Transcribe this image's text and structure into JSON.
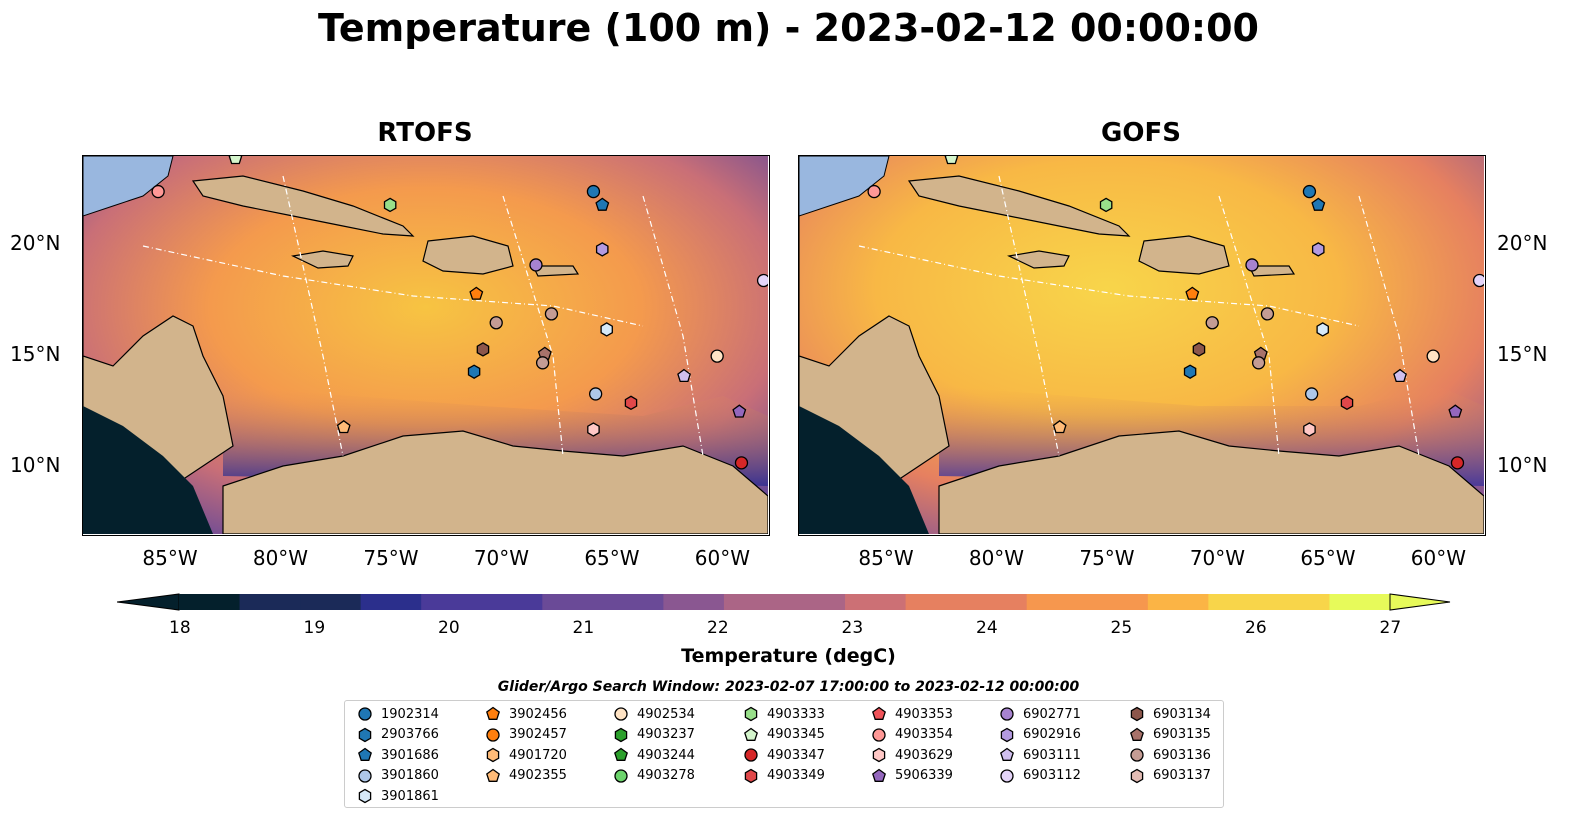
{
  "title": "Temperature (100 m) - 2023-02-12 00:00:00",
  "panels": [
    {
      "name": "RTOFS"
    },
    {
      "name": "GOFS"
    }
  ],
  "map_extent": {
    "lon_min": -89,
    "lon_max": -58,
    "lat_min": 7,
    "lat_max": 24
  },
  "lon_ticks": [
    "85°W",
    "80°W",
    "75°W",
    "70°W",
    "65°W",
    "60°W"
  ],
  "lat_ticks": [
    "20°N",
    "15°N",
    "10°N"
  ],
  "colorbar": {
    "label": "Temperature (degC)",
    "ticks": [
      "18",
      "19",
      "20",
      "21",
      "22",
      "23",
      "24",
      "25",
      "26",
      "27"
    ],
    "min": 18,
    "max": 27,
    "extend": "both",
    "colormap": "thermal",
    "stops": [
      "#04202c",
      "#1b2a58",
      "#2b2f8c",
      "#4a3a99",
      "#6a4a97",
      "#8a5791",
      "#ab6586",
      "#cc7075",
      "#e68060",
      "#f6974e",
      "#fbb445",
      "#f8d54a",
      "#e7fa5a"
    ]
  },
  "legend": {
    "title": "Glider/Argo Search Window: 2023-02-07 17:00:00 to 2023-02-12 00:00:00",
    "items": [
      {
        "label": "1902314",
        "marker": "circle",
        "color": "#1f77b4"
      },
      {
        "label": "2903766",
        "marker": "hexagon",
        "color": "#1f77b4"
      },
      {
        "label": "3901686",
        "marker": "pentagon",
        "color": "#1f77b4"
      },
      {
        "label": "3901860",
        "marker": "circle",
        "color": "#aec7e8"
      },
      {
        "label": "3901861",
        "marker": "hexagon",
        "color": "#d6e9f8"
      },
      {
        "label": "3902456",
        "marker": "pentagon",
        "color": "#ff7f0e"
      },
      {
        "label": "3902457",
        "marker": "circle",
        "color": "#ff7f0e"
      },
      {
        "label": "4901720",
        "marker": "hexagon",
        "color": "#ffbb78"
      },
      {
        "label": "4902355",
        "marker": "pentagon",
        "color": "#ffbb78"
      },
      {
        "label": "4902534",
        "marker": "circle",
        "color": "#ffe3c4"
      },
      {
        "label": "4903237",
        "marker": "hexagon",
        "color": "#2ca02c"
      },
      {
        "label": "4903244",
        "marker": "pentagon",
        "color": "#2ca02c"
      },
      {
        "label": "4903278",
        "marker": "circle",
        "color": "#6cd46c"
      },
      {
        "label": "4903333",
        "marker": "hexagon",
        "color": "#98df8a"
      },
      {
        "label": "4903345",
        "marker": "pentagon",
        "color": "#d4f5cc"
      },
      {
        "label": "4903347",
        "marker": "circle",
        "color": "#d62728"
      },
      {
        "label": "4903349",
        "marker": "hexagon",
        "color": "#e0484a"
      },
      {
        "label": "4903353",
        "marker": "pentagon",
        "color": "#f0535a"
      },
      {
        "label": "4903354",
        "marker": "circle",
        "color": "#ff9896"
      },
      {
        "label": "4903629",
        "marker": "hexagon",
        "color": "#ffc8c6"
      },
      {
        "label": "5906339",
        "marker": "pentagon",
        "color": "#9467bd"
      },
      {
        "label": "6902771",
        "marker": "circle",
        "color": "#a783cf"
      },
      {
        "label": "6902916",
        "marker": "hexagon",
        "color": "#b39ae0"
      },
      {
        "label": "6903111",
        "marker": "pentagon",
        "color": "#d0bfee"
      },
      {
        "label": "6903112",
        "marker": "circle",
        "color": "#e4d4f8"
      },
      {
        "label": "6903134",
        "marker": "hexagon",
        "color": "#8c564b"
      },
      {
        "label": "6903135",
        "marker": "pentagon",
        "color": "#a8726a"
      },
      {
        "label": "6903136",
        "marker": "circle",
        "color": "#c49c94"
      },
      {
        "label": "6903137",
        "marker": "hexagon",
        "color": "#e3bcb4"
      }
    ]
  },
  "markers": [
    {
      "id": "1902314",
      "lon": -65.9,
      "lat": 22.4
    },
    {
      "id": "3901686",
      "lon": -65.5,
      "lat": 21.8
    },
    {
      "id": "6902916",
      "lon": -65.5,
      "lat": 19.8
    },
    {
      "id": "6902771",
      "lon": -68.5,
      "lat": 19.1
    },
    {
      "id": "4903333",
      "lon": -75.1,
      "lat": 21.8
    },
    {
      "id": "4903345",
      "lon": -82.1,
      "lat": 23.9
    },
    {
      "id": "4903354",
      "lon": -85.6,
      "lat": 22.4
    },
    {
      "id": "3902456",
      "lon": -71.2,
      "lat": 17.8
    },
    {
      "id": "6903136",
      "lon": -67.8,
      "lat": 16.9
    },
    {
      "id": "6903136",
      "lon": -70.3,
      "lat": 16.5
    },
    {
      "id": "3901861",
      "lon": -65.3,
      "lat": 16.2
    },
    {
      "id": "6903134",
      "lon": -70.9,
      "lat": 15.3
    },
    {
      "id": "6903135",
      "lon": -68.1,
      "lat": 15.1
    },
    {
      "id": "6903136",
      "lon": -68.2,
      "lat": 14.7
    },
    {
      "id": "2903766",
      "lon": -71.3,
      "lat": 14.3
    },
    {
      "id": "4902534",
      "lon": -60.3,
      "lat": 15.0
    },
    {
      "id": "6903111",
      "lon": -61.8,
      "lat": 14.1
    },
    {
      "id": "3901860",
      "lon": -65.8,
      "lat": 13.3
    },
    {
      "id": "4903349",
      "lon": -64.2,
      "lat": 12.9
    },
    {
      "id": "5906339",
      "lon": -59.3,
      "lat": 12.5
    },
    {
      "id": "4902355",
      "lon": -77.2,
      "lat": 11.8
    },
    {
      "id": "4903629",
      "lon": -65.9,
      "lat": 11.7
    },
    {
      "id": "4903347",
      "lon": -59.2,
      "lat": 10.2
    },
    {
      "id": "6903112",
      "lon": -58.2,
      "lat": 18.4
    }
  ]
}
